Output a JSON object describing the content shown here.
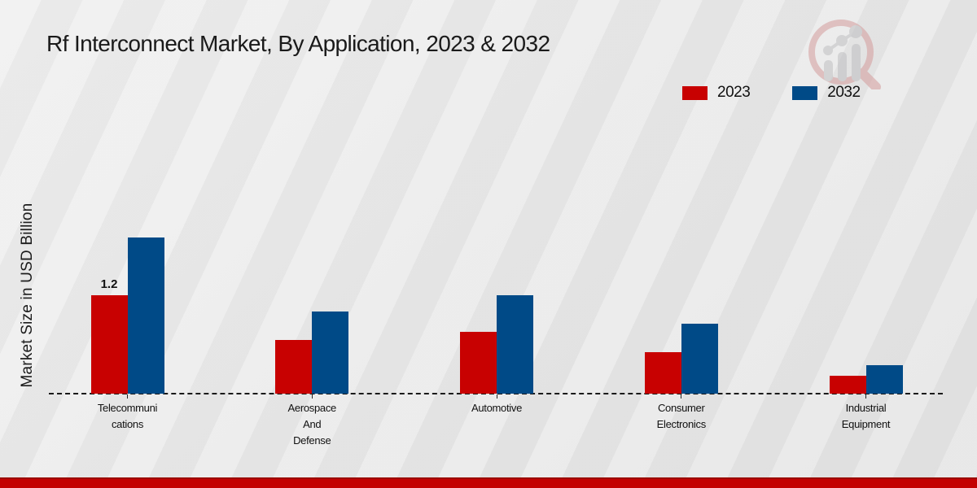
{
  "chart_data": {
    "type": "bar",
    "title": "Rf Interconnect Market, By Application, 2023 & 2032",
    "ylabel": "Market Size in USD Billion",
    "categories": [
      "Telecommunications",
      "Aerospace And Defense",
      "Automotive",
      "Consumer Electronics",
      "Industrial Equipment"
    ],
    "category_label_lines": [
      [
        "Telecommuni",
        "cations"
      ],
      [
        "Aerospace",
        "And",
        "Defense"
      ],
      [
        "Automotive"
      ],
      [
        "Consumer",
        "Electronics"
      ],
      [
        "Industrial",
        "Equipment"
      ]
    ],
    "series": [
      {
        "name": "2023",
        "color": "#c80101",
        "values": [
          1.2,
          0.65,
          0.75,
          0.5,
          0.22
        ]
      },
      {
        "name": "2032",
        "color": "#004a87",
        "values": [
          1.9,
          1.0,
          1.2,
          0.85,
          0.35
        ]
      }
    ],
    "annotations": [
      {
        "series": "2023",
        "category_index": 0,
        "label": "1.2"
      }
    ],
    "ylim": [
      0,
      2.1
    ],
    "legend_position": "top-right",
    "grid": false,
    "baseline_style": "dashed"
  },
  "footer": {
    "strip_color": "#c30101"
  },
  "logo": {
    "name": "magnifier-bar-chart-watermark"
  }
}
